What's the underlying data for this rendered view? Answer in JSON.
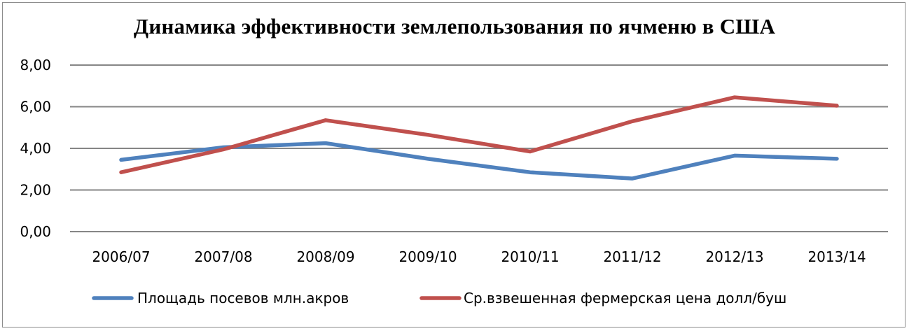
{
  "chart_data": {
    "type": "line",
    "title": "Динамика эффективности землепользования по ячменю в США",
    "xlabel": "",
    "ylabel": "",
    "categories": [
      "2006/07",
      "2007/08",
      "2008/09",
      "2009/10",
      "2010/11",
      "2011/12",
      "2012/13",
      "2013/14"
    ],
    "ylim": [
      0,
      8
    ],
    "yticks": [
      "0,00",
      "2,00",
      "4,00",
      "6,00",
      "8,00"
    ],
    "ytick_values": [
      0,
      2,
      4,
      6,
      8
    ],
    "grid": true,
    "legend_position": "bottom",
    "series": [
      {
        "name": "Площадь посевов млн.акров",
        "color": "#4f81bd",
        "values": [
          3.45,
          4.05,
          4.25,
          3.5,
          2.85,
          2.55,
          3.65,
          3.5
        ]
      },
      {
        "name": "Ср.взвешенная фермерская цена долл/буш",
        "color": "#c0504d",
        "values": [
          2.85,
          3.95,
          5.35,
          4.65,
          3.85,
          5.3,
          6.45,
          6.05
        ]
      }
    ]
  }
}
